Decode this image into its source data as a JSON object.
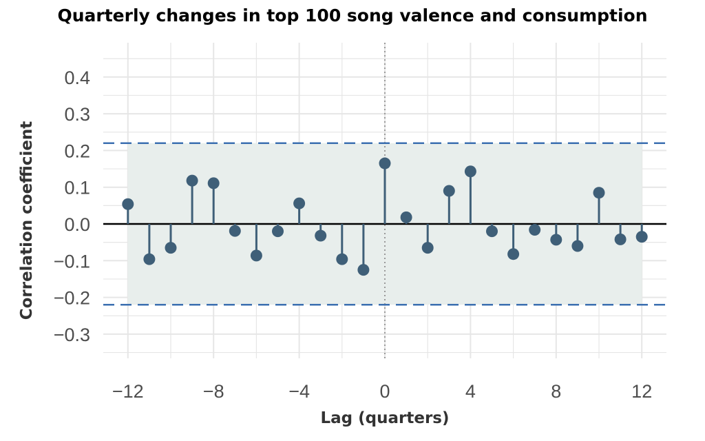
{
  "chart_data": {
    "type": "stem",
    "title": "Quarterly changes in top 100 song valence and consumption",
    "xlabel": "Lag (quarters)",
    "ylabel": "Correlation coefficient",
    "xlim": [
      -13.2,
      13.2
    ],
    "ylim": [
      -0.39,
      0.48
    ],
    "x_ticks": [
      -12,
      -8,
      -4,
      0,
      4,
      8,
      12
    ],
    "x_tick_labels": [
      "−12",
      "−8",
      "−4",
      "0",
      "4",
      "8",
      "12"
    ],
    "y_ticks": [
      0.4,
      0.3,
      0.2,
      0.1,
      0.0,
      -0.1,
      -0.2,
      -0.3
    ],
    "y_tick_labels": [
      "0.4",
      "0.3",
      "0.2",
      "0.1",
      "0.0",
      "−0.1",
      "−0.2",
      "−0.3"
    ],
    "grid": true,
    "confidence_bound": 0.22,
    "reference_line_x": 0,
    "x": [
      -12,
      -11,
      -10,
      -9,
      -8,
      -7,
      -6,
      -5,
      -4,
      -3,
      -2,
      -1,
      0,
      1,
      2,
      3,
      4,
      5,
      6,
      7,
      8,
      9,
      10,
      11,
      12
    ],
    "values": [
      0.054,
      -0.096,
      -0.065,
      0.118,
      0.111,
      -0.019,
      -0.086,
      -0.02,
      0.056,
      -0.032,
      -0.096,
      -0.125,
      0.165,
      0.018,
      -0.065,
      0.09,
      0.143,
      -0.02,
      -0.082,
      -0.016,
      -0.043,
      -0.06,
      0.085,
      -0.042,
      -0.035
    ],
    "colors": {
      "stem": "#3f5f78",
      "bound": "#3b6fb0",
      "band": "#e8eeec",
      "zero_line": "#000000",
      "grid": "#e6e6e6",
      "ref_line": "#999999"
    }
  }
}
